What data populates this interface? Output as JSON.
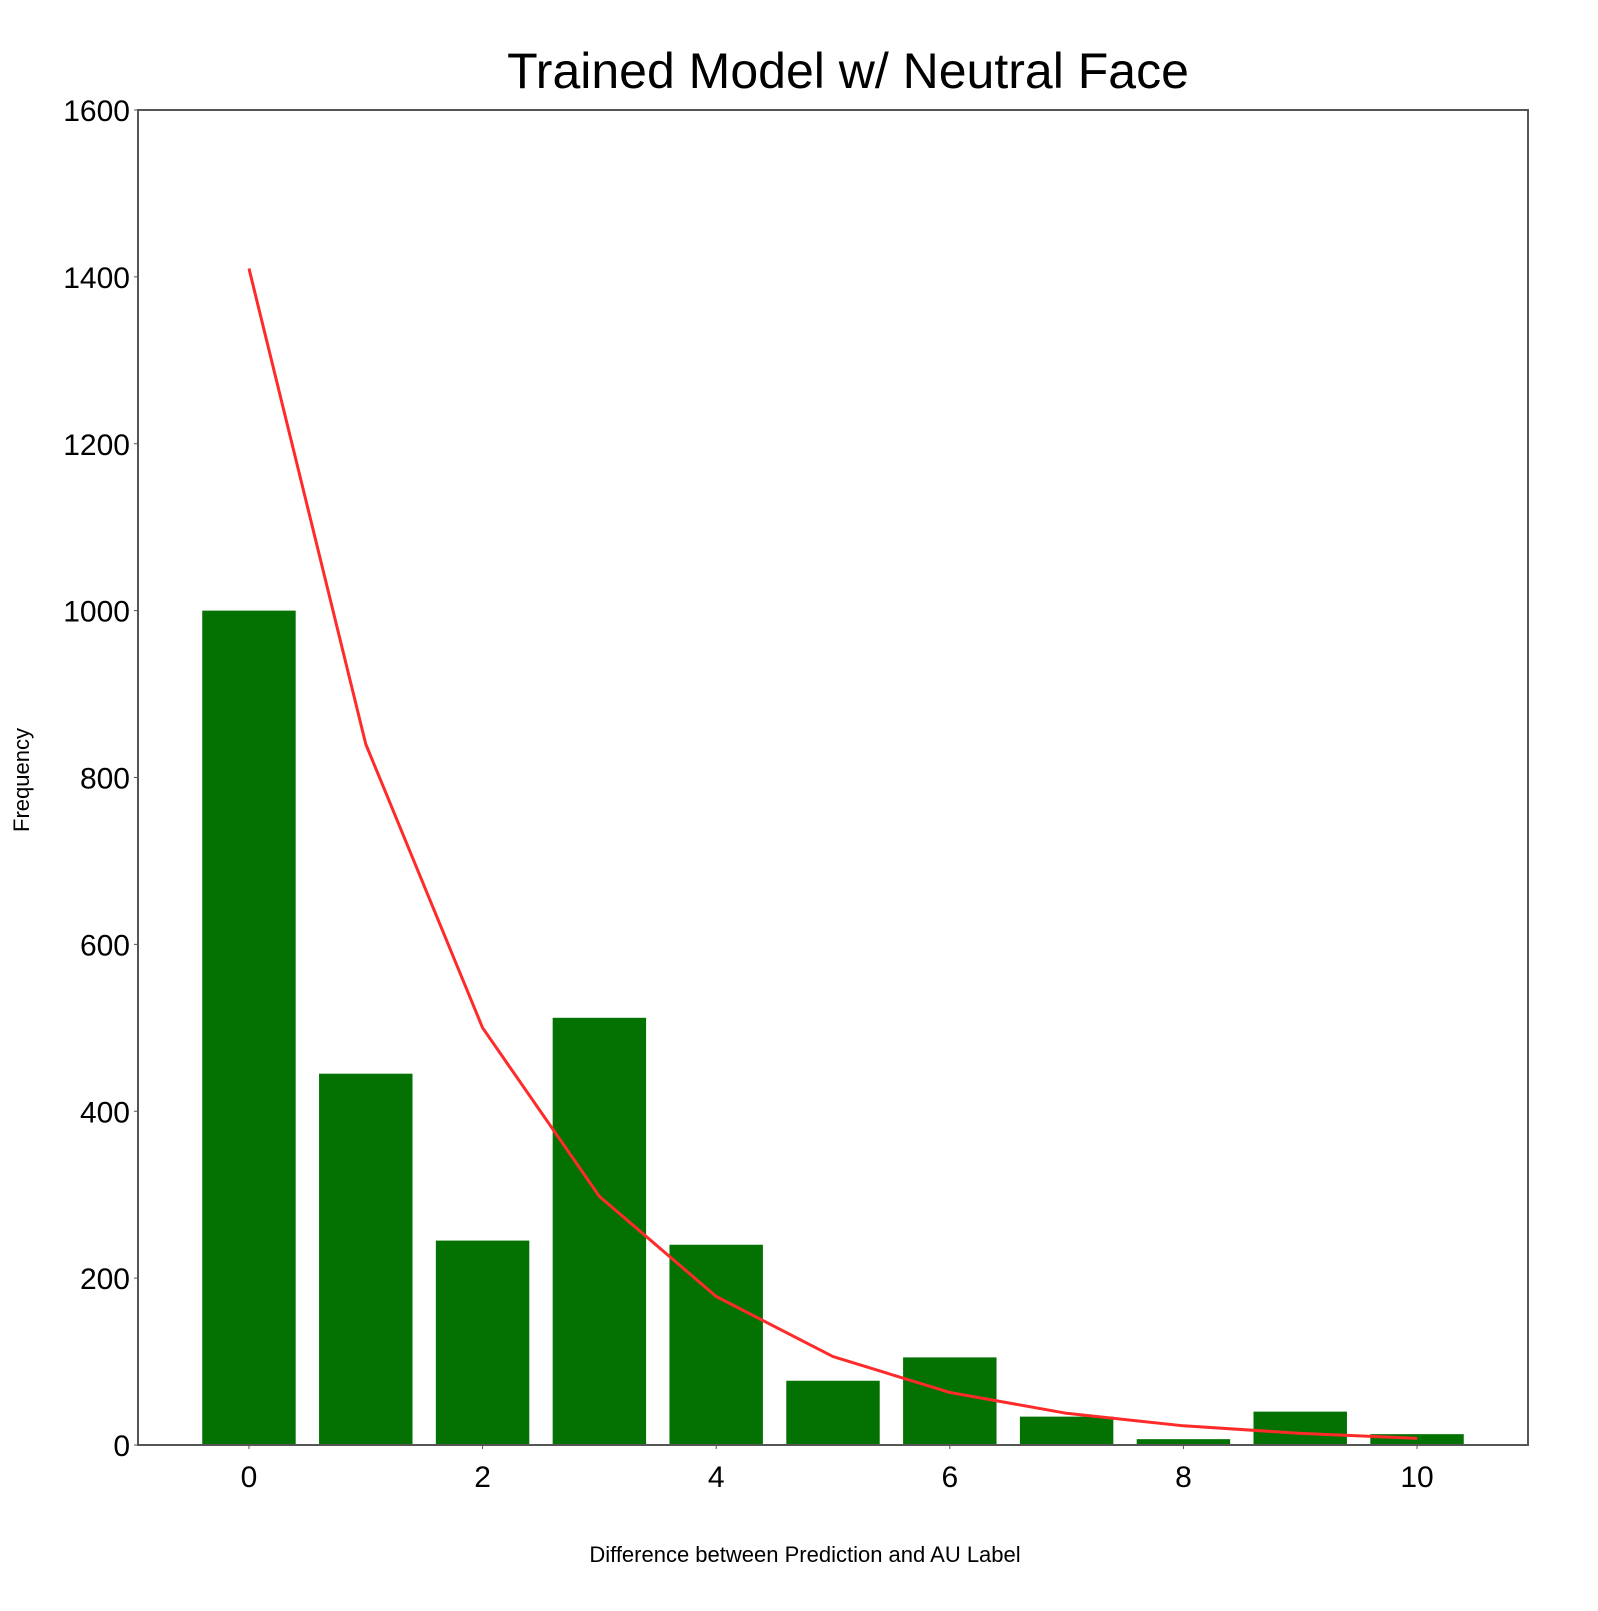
{
  "chart_data": {
    "type": "bar",
    "title": "Trained Model w/ Neutral Face",
    "xlabel": "Difference between Prediction and AU Label",
    "ylabel": "Frequency",
    "x": [
      0,
      1,
      2,
      3,
      4,
      5,
      6,
      7,
      8,
      9,
      10
    ],
    "series": [
      {
        "kind": "bar",
        "color": "#037203",
        "values": [
          1000,
          445,
          245,
          512,
          240,
          77,
          105,
          34,
          7,
          40,
          13
        ]
      },
      {
        "kind": "line",
        "color": "#ff2a2a",
        "values": [
          1410,
          840,
          500,
          298,
          178,
          106,
          63,
          38,
          23,
          14,
          8
        ]
      }
    ],
    "xlim": [
      -0.95,
      10.95
    ],
    "ylim": [
      0,
      1600
    ],
    "xticks": [
      "0",
      "2",
      "4",
      "6",
      "8",
      "10"
    ],
    "yticks": [
      "0",
      "200",
      "400",
      "600",
      "800",
      "1000",
      "1200",
      "1400",
      "1600"
    ],
    "grid": false,
    "legend": "none"
  }
}
